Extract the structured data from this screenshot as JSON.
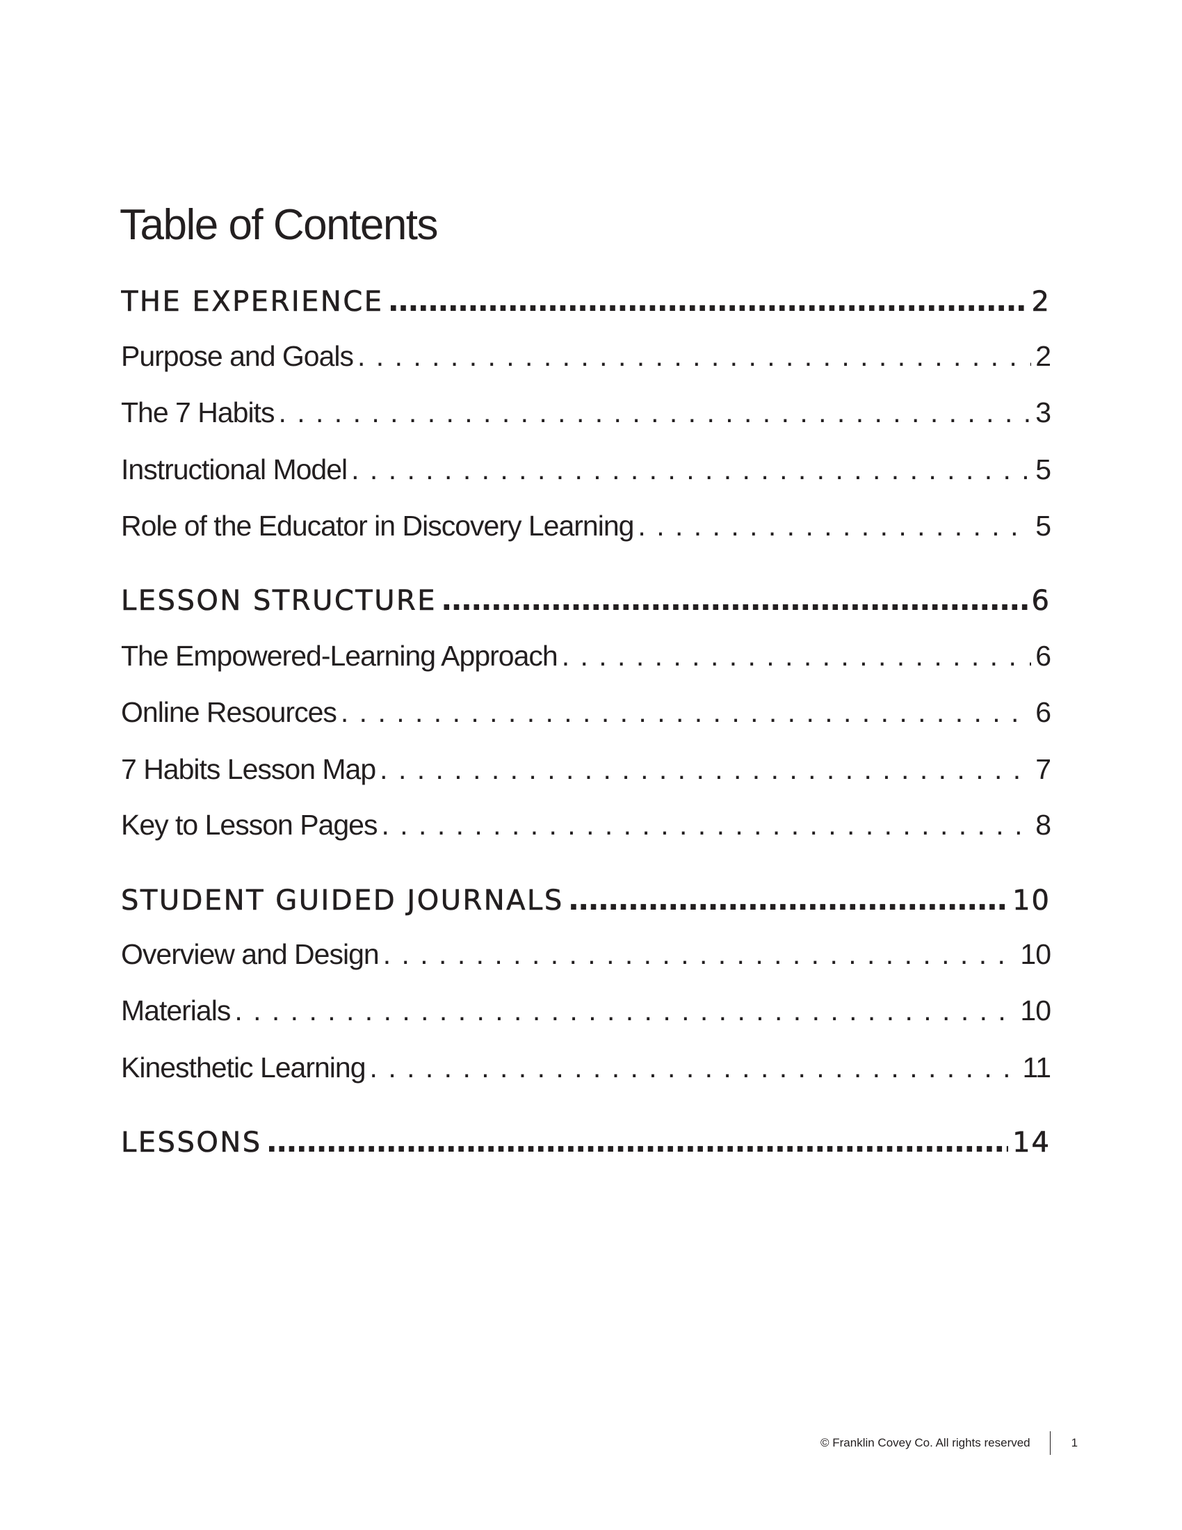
{
  "title": "Table of Contents",
  "sections": [
    {
      "label": "THE EXPERIENCE",
      "page": "2",
      "items": [
        {
          "label": "Purpose and Goals",
          "page": "2"
        },
        {
          "label": "The 7 Habits",
          "page": "3"
        },
        {
          "label": "Instructional Model",
          "page": "5"
        },
        {
          "label": "Role of the Educator in Discovery Learning",
          "page": "5"
        }
      ]
    },
    {
      "label": "LESSON STRUCTURE",
      "page": "6",
      "items": [
        {
          "label": "The Empowered-Learning Approach",
          "page": "6"
        },
        {
          "label": "Online Resources",
          "page": "6"
        },
        {
          "label": "7 Habits Lesson Map",
          "page": "7"
        },
        {
          "label": "Key to Lesson Pages",
          "page": "8"
        }
      ]
    },
    {
      "label": "STUDENT GUIDED JOURNALS",
      "page": "10",
      "items": [
        {
          "label": "Overview and Design",
          "page": "10"
        },
        {
          "label": "Materials",
          "page": "10"
        },
        {
          "label": "Kinesthetic Learning",
          "page": "11"
        }
      ]
    },
    {
      "label": "LESSONS",
      "page": "14",
      "items": []
    }
  ],
  "footer": {
    "copyright": "© Franklin Covey Co. All rights reserved",
    "page_number": "1"
  }
}
